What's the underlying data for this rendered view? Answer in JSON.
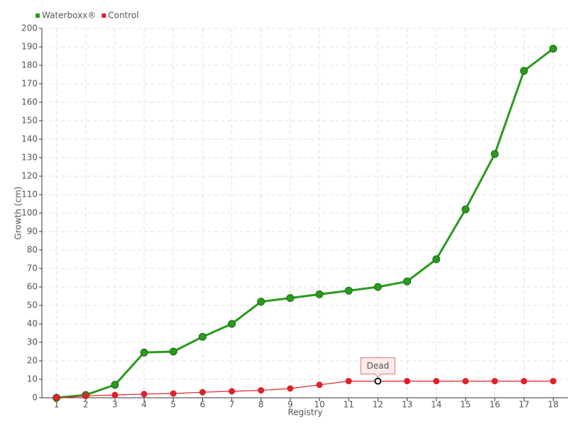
{
  "chart_data": {
    "type": "line",
    "xlabel": "Registry",
    "ylabel": "Growth (cm)",
    "categories": [
      "1",
      "2",
      "3",
      "4",
      "5",
      "6",
      "7",
      "8",
      "9",
      "10",
      "11",
      "12",
      "13",
      "14",
      "15",
      "16",
      "17",
      "18"
    ],
    "series": [
      {
        "name": "Waterboxx®",
        "color": "#2a9a1e",
        "values": [
          0,
          1.5,
          7,
          24.5,
          25,
          33,
          40,
          52,
          54,
          56,
          58,
          60,
          63,
          75,
          102,
          132,
          177,
          189
        ]
      },
      {
        "name": "Control",
        "color": "#e0202a",
        "values": [
          0,
          1,
          1.5,
          2,
          2.3,
          3,
          3.5,
          4,
          5,
          7,
          9,
          9,
          9,
          9,
          9,
          9,
          9,
          9
        ]
      }
    ],
    "annotations": [
      {
        "text": "Dead",
        "series": "Control",
        "category": "12"
      }
    ],
    "ylim": [
      0,
      200
    ],
    "yticks": [
      0,
      10,
      20,
      30,
      40,
      50,
      60,
      70,
      80,
      90,
      100,
      110,
      120,
      130,
      140,
      150,
      160,
      170,
      180,
      190,
      200
    ],
    "grid": true,
    "legend": "top-left"
  }
}
